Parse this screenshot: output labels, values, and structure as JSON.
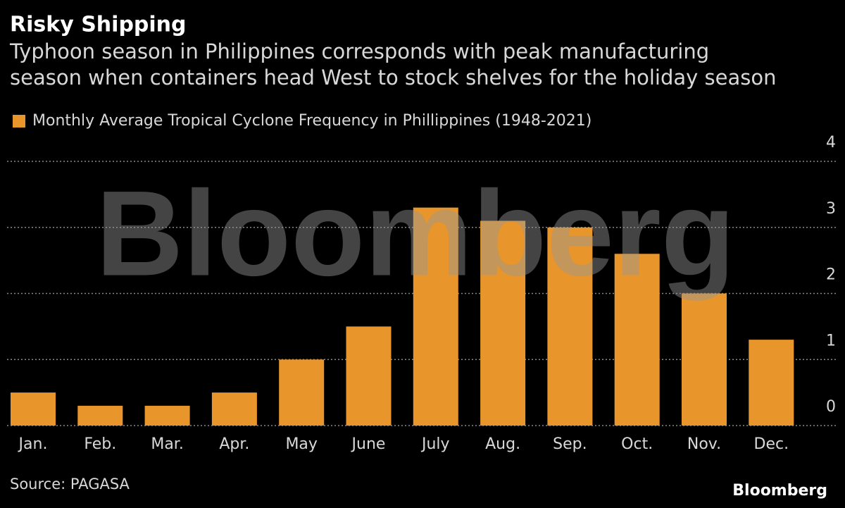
{
  "chart_data": {
    "type": "bar",
    "title": "Risky Shipping",
    "subtitle": [
      "Typhoon season in Philippines corresponds with peak manufacturing",
      "season when containers head West to stock shelves for the holiday season"
    ],
    "series": [
      {
        "name": "Monthly Average Tropical Cyclone Frequency in Phillippines (1948-2021)",
        "color": "#e8952b",
        "values": [
          0.5,
          0.3,
          0.3,
          0.5,
          1.0,
          1.5,
          3.3,
          3.1,
          3.0,
          2.6,
          2.0,
          1.3
        ]
      }
    ],
    "categories": [
      "Jan.",
      "Feb.",
      "Mar.",
      "Apr.",
      "May",
      "June",
      "July",
      "Aug.",
      "Sep.",
      "Oct.",
      "Nov.",
      "Dec."
    ],
    "ylim": [
      0,
      4
    ],
    "yticks": [
      0,
      1,
      2,
      3,
      4
    ],
    "grid": true,
    "source": "Source: PAGASA",
    "watermark": "Bloomberg",
    "logo": "Bloomberg"
  }
}
